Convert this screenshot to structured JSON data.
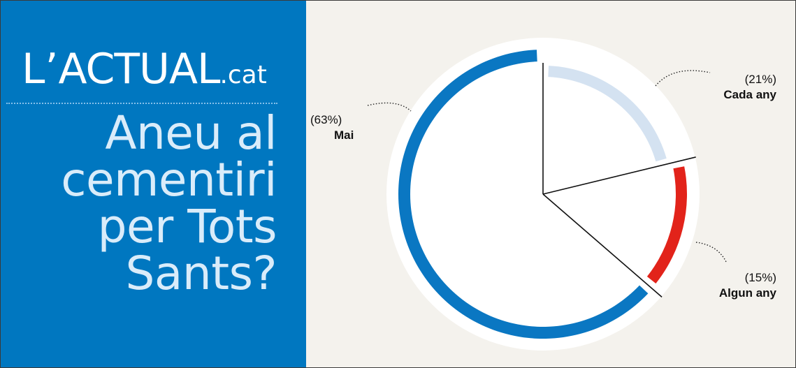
{
  "header": {
    "brand_prefix": "L’",
    "brand_main": "ACTUAL",
    "brand_suffix": ".cat",
    "question_lines": [
      "Aneu al",
      "cementiri",
      "per Tots",
      "Sants?"
    ]
  },
  "colors": {
    "panel": "#0077c0",
    "background": "#f4f2ed",
    "mai": "#0a77c2",
    "cada_any": "#d4e2f1",
    "algun_any": "#e2231a"
  },
  "chart_data": {
    "type": "pie",
    "title": "Aneu al cementiri per Tots Sants?",
    "slices": [
      {
        "label": "Mai",
        "pct_label": "(63%)",
        "value": 63,
        "color": "#0a77c2"
      },
      {
        "label": "Cada any",
        "pct_label": "(21%)",
        "value": 21,
        "color": "#d4e2f1"
      },
      {
        "label": "Algun any",
        "pct_label": "(15%)",
        "value": 15,
        "color": "#e2231a"
      }
    ]
  }
}
